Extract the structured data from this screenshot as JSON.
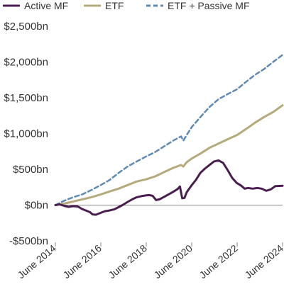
{
  "chart_data": {
    "type": "line",
    "title": "",
    "xlabel": "",
    "ylabel": "",
    "ylim": [
      -500,
      2500
    ],
    "yticks": [
      -500,
      0,
      500,
      1000,
      1500,
      2000,
      2500
    ],
    "ytick_labels": [
      "-$500bn",
      "$0bn",
      "$500bn",
      "$1,000bn",
      "$1,500bn",
      "$2,000bn",
      "$2,500bn"
    ],
    "xlim": [
      2014.42,
      2024.42
    ],
    "xticks": [
      2014.42,
      2016.42,
      2018.42,
      2020.42,
      2022.42,
      2024.42
    ],
    "xtick_labels": [
      "June 2014",
      "June 2016",
      "June 2018",
      "June 2020",
      "June 2022",
      "June 2024"
    ],
    "grid": false,
    "legend": "top",
    "series": [
      {
        "name": "Active MF",
        "color": "#4a1f4f",
        "style": "solid",
        "points": [
          [
            2014.42,
            0
          ],
          [
            2014.6,
            10
          ],
          [
            2014.8,
            -10
          ],
          [
            2015.0,
            -25
          ],
          [
            2015.2,
            -15
          ],
          [
            2015.4,
            -20
          ],
          [
            2015.6,
            -55
          ],
          [
            2015.8,
            -80
          ],
          [
            2015.95,
            -100
          ],
          [
            2016.05,
            -130
          ],
          [
            2016.2,
            -135
          ],
          [
            2016.4,
            -110
          ],
          [
            2016.6,
            -85
          ],
          [
            2016.8,
            -75
          ],
          [
            2017.0,
            -60
          ],
          [
            2017.2,
            -30
          ],
          [
            2017.4,
            5
          ],
          [
            2017.6,
            45
          ],
          [
            2017.8,
            80
          ],
          [
            2018.0,
            110
          ],
          [
            2018.2,
            125
          ],
          [
            2018.4,
            135
          ],
          [
            2018.55,
            140
          ],
          [
            2018.7,
            130
          ],
          [
            2018.85,
            70
          ],
          [
            2019.0,
            80
          ],
          [
            2019.2,
            115
          ],
          [
            2019.4,
            150
          ],
          [
            2019.6,
            185
          ],
          [
            2019.8,
            225
          ],
          [
            2019.9,
            260
          ],
          [
            2020.0,
            95
          ],
          [
            2020.1,
            100
          ],
          [
            2020.2,
            180
          ],
          [
            2020.4,
            270
          ],
          [
            2020.6,
            350
          ],
          [
            2020.8,
            450
          ],
          [
            2021.0,
            510
          ],
          [
            2021.2,
            560
          ],
          [
            2021.4,
            610
          ],
          [
            2021.6,
            625
          ],
          [
            2021.8,
            590
          ],
          [
            2022.0,
            490
          ],
          [
            2022.2,
            380
          ],
          [
            2022.4,
            310
          ],
          [
            2022.6,
            270
          ],
          [
            2022.75,
            230
          ],
          [
            2022.9,
            240
          ],
          [
            2023.1,
            230
          ],
          [
            2023.3,
            240
          ],
          [
            2023.5,
            230
          ],
          [
            2023.7,
            200
          ],
          [
            2023.9,
            220
          ],
          [
            2024.1,
            265
          ],
          [
            2024.42,
            270
          ]
        ]
      },
      {
        "name": "ETF",
        "color": "#b5aa7c",
        "style": "solid",
        "points": [
          [
            2014.42,
            0
          ],
          [
            2014.8,
            20
          ],
          [
            2015.2,
            50
          ],
          [
            2015.6,
            80
          ],
          [
            2016.0,
            110
          ],
          [
            2016.42,
            150
          ],
          [
            2016.8,
            190
          ],
          [
            2017.2,
            230
          ],
          [
            2017.6,
            280
          ],
          [
            2018.0,
            330
          ],
          [
            2018.42,
            360
          ],
          [
            2018.8,
            400
          ],
          [
            2019.2,
            460
          ],
          [
            2019.6,
            520
          ],
          [
            2019.95,
            560
          ],
          [
            2020.05,
            540
          ],
          [
            2020.2,
            600
          ],
          [
            2020.42,
            650
          ],
          [
            2020.8,
            720
          ],
          [
            2021.2,
            800
          ],
          [
            2021.6,
            860
          ],
          [
            2022.0,
            920
          ],
          [
            2022.42,
            980
          ],
          [
            2022.8,
            1060
          ],
          [
            2023.2,
            1150
          ],
          [
            2023.6,
            1230
          ],
          [
            2024.0,
            1300
          ],
          [
            2024.42,
            1395
          ]
        ]
      },
      {
        "name": "ETF + Passive MF",
        "color": "#5f8ab5",
        "style": "dashed",
        "points": [
          [
            2014.42,
            0
          ],
          [
            2014.8,
            60
          ],
          [
            2015.2,
            110
          ],
          [
            2015.6,
            150
          ],
          [
            2016.0,
            210
          ],
          [
            2016.42,
            280
          ],
          [
            2016.8,
            350
          ],
          [
            2017.2,
            450
          ],
          [
            2017.6,
            540
          ],
          [
            2018.0,
            610
          ],
          [
            2018.42,
            680
          ],
          [
            2018.8,
            740
          ],
          [
            2019.2,
            820
          ],
          [
            2019.6,
            900
          ],
          [
            2019.95,
            960
          ],
          [
            2020.05,
            900
          ],
          [
            2020.2,
            980
          ],
          [
            2020.42,
            1090
          ],
          [
            2020.8,
            1230
          ],
          [
            2021.2,
            1370
          ],
          [
            2021.6,
            1480
          ],
          [
            2022.0,
            1550
          ],
          [
            2022.42,
            1620
          ],
          [
            2022.8,
            1720
          ],
          [
            2023.2,
            1820
          ],
          [
            2023.6,
            1900
          ],
          [
            2024.0,
            2000
          ],
          [
            2024.42,
            2100
          ]
        ]
      }
    ]
  }
}
